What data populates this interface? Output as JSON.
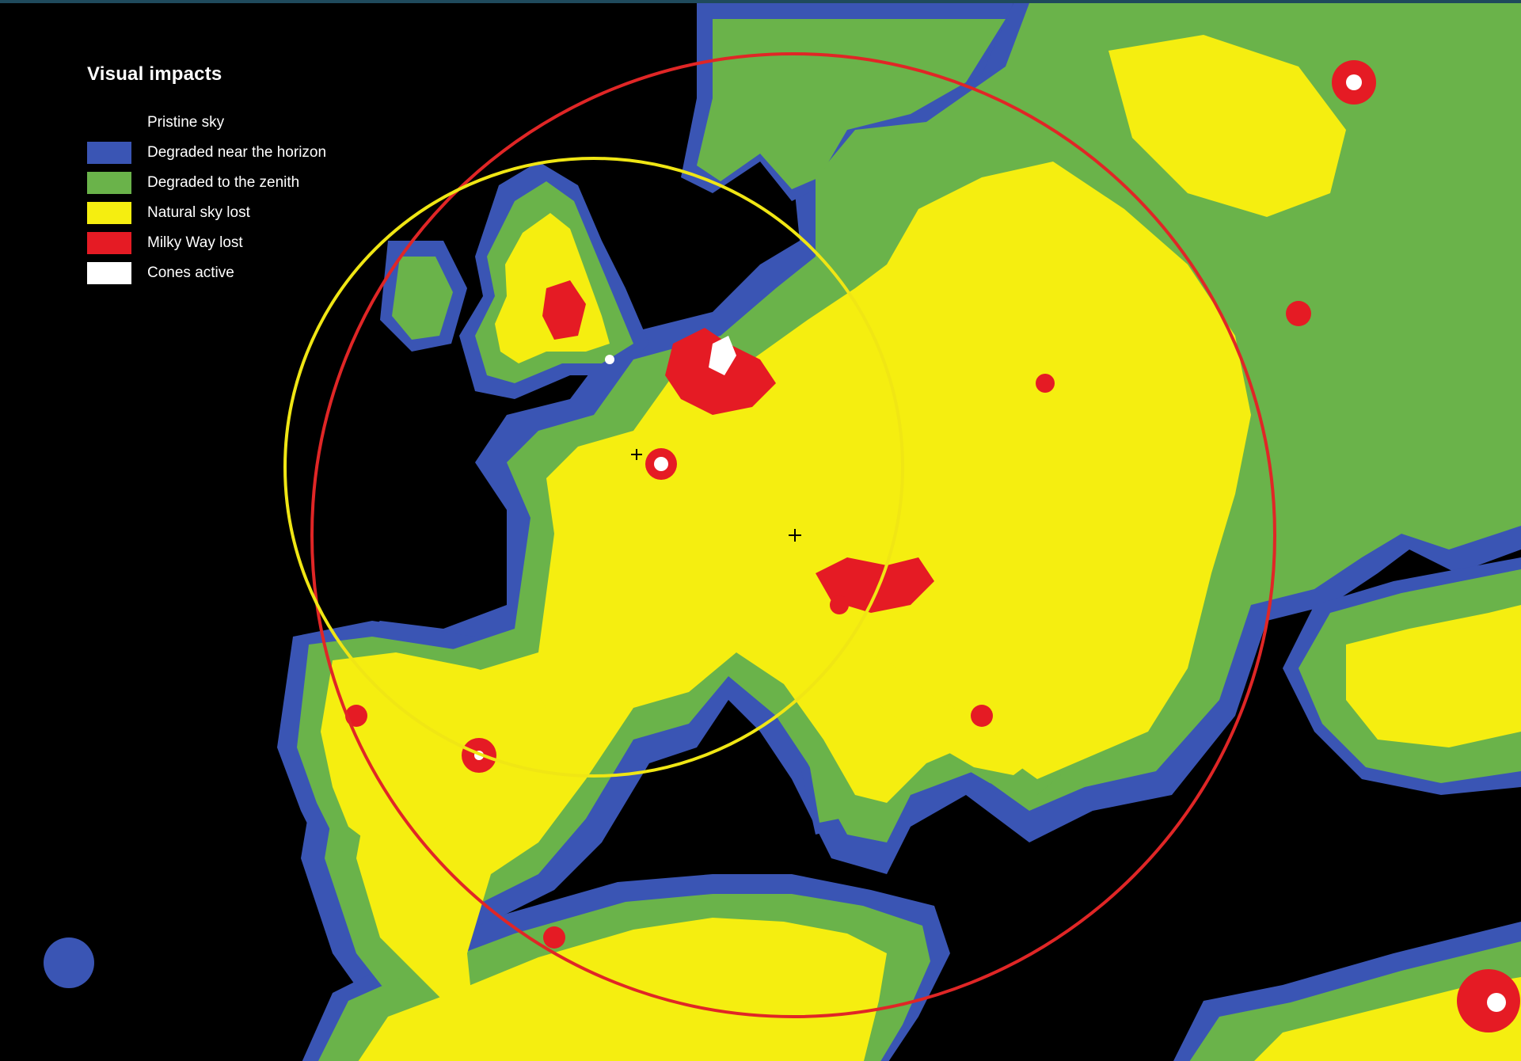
{
  "legend": {
    "title": "Visual impacts",
    "items": [
      {
        "label": "Pristine sky",
        "color": "#000000"
      },
      {
        "label": "Degraded near the horizon",
        "color": "#3a55b4"
      },
      {
        "label": "Degraded to the zenith",
        "color": "#6ab34a"
      },
      {
        "label": "Natural sky lost",
        "color": "#f5ee10"
      },
      {
        "label": "Milky Way lost",
        "color": "#e51b24"
      },
      {
        "label": "Cones active",
        "color": "#ffffff"
      }
    ]
  },
  "colors": {
    "background": "#000000",
    "horizon": "#3a55b4",
    "zenith": "#6ab34a",
    "natural_lost": "#f5ee10",
    "milky_way_lost": "#e51b24",
    "cones_active": "#ffffff",
    "outer_circle": "#e02626",
    "inner_circle": "#f0e614"
  },
  "markers": [
    {
      "name": "center-marker",
      "symbol": "+"
    },
    {
      "name": "west-marker",
      "symbol": "+"
    }
  ]
}
